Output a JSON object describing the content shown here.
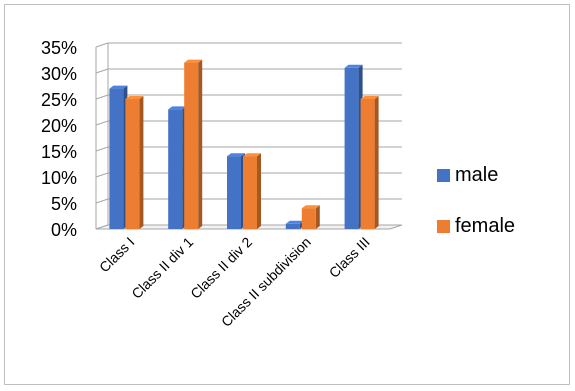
{
  "chart_data": {
    "type": "bar",
    "title": "",
    "xlabel": "",
    "ylabel": "",
    "categories": [
      "Class I",
      "Class II div 1",
      "Class II div 2",
      "Class II subdivision",
      "Class III"
    ],
    "series": [
      {
        "name": "male",
        "values": [
          27,
          23,
          14,
          1,
          31
        ],
        "color": "#4472c4"
      },
      {
        "name": "female",
        "values": [
          25,
          32,
          14,
          4,
          25
        ],
        "color": "#ed7d31"
      }
    ],
    "ylim": [
      0,
      35
    ],
    "y_ticks": [
      "0%",
      "5%",
      "10%",
      "15%",
      "20%",
      "25%",
      "30%",
      "35%"
    ],
    "grid": true,
    "legend_position": "right",
    "style": "3d-clustered-column"
  }
}
